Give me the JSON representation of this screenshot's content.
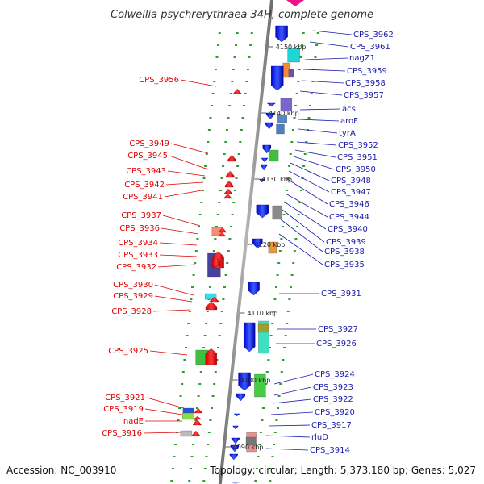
{
  "header": {
    "title": "Colwellia psychrerythraea 34H, complete genome"
  },
  "footer": {
    "accession": "Accession: NC_003910",
    "topology": "Topology: circular; Length: 5,373,180 bp; Genes: 5,027"
  },
  "colors": {
    "backbone": "#8f8f8f",
    "forward_strand": "#1f3fff",
    "reverse_strand": "#ff1f1f",
    "forward_label": "#1a1aaa",
    "reverse_label": "#dd0000",
    "grid_dot": "#2e9e2e"
  },
  "chart_data": {
    "type": "diagram",
    "scale_unit": "kbp",
    "scale_ticks": [
      "4150 kbp",
      "4140 kbp",
      "4130 kbp",
      "4120 kbp",
      "4110 kbp",
      "4100 kbp",
      "4090 kbp"
    ],
    "forward_genes": [
      "CPS_3962",
      "CPS_3961",
      "nagZ1",
      "CPS_3959",
      "CPS_3958",
      "CPS_3957",
      "acs",
      "aroF",
      "tyrA",
      "CPS_3952",
      "CPS_3951",
      "CPS_3950",
      "CPS_3948",
      "CPS_3947",
      "CPS_3946",
      "CPS_3944",
      "CPS_3940",
      "CPS_3939",
      "CPS_3938",
      "CPS_3935",
      "CPS_3931",
      "CPS_3927",
      "CPS_3926",
      "CPS_3924",
      "CPS_3923",
      "CPS_3922",
      "CPS_3920",
      "CPS_3917",
      "rluD",
      "CPS_3914"
    ],
    "reverse_genes": [
      "CPS_3956",
      "CPS_3949",
      "CPS_3945",
      "CPS_3943",
      "CPS_3942",
      "CPS_3941",
      "CPS_3937",
      "CPS_3936",
      "CPS_3934",
      "CPS_3933",
      "CPS_3932",
      "CPS_3930",
      "CPS_3929",
      "CPS_3928",
      "CPS_3925",
      "CPS_3921",
      "CPS_3919",
      "nadE",
      "CPS_3916"
    ]
  }
}
